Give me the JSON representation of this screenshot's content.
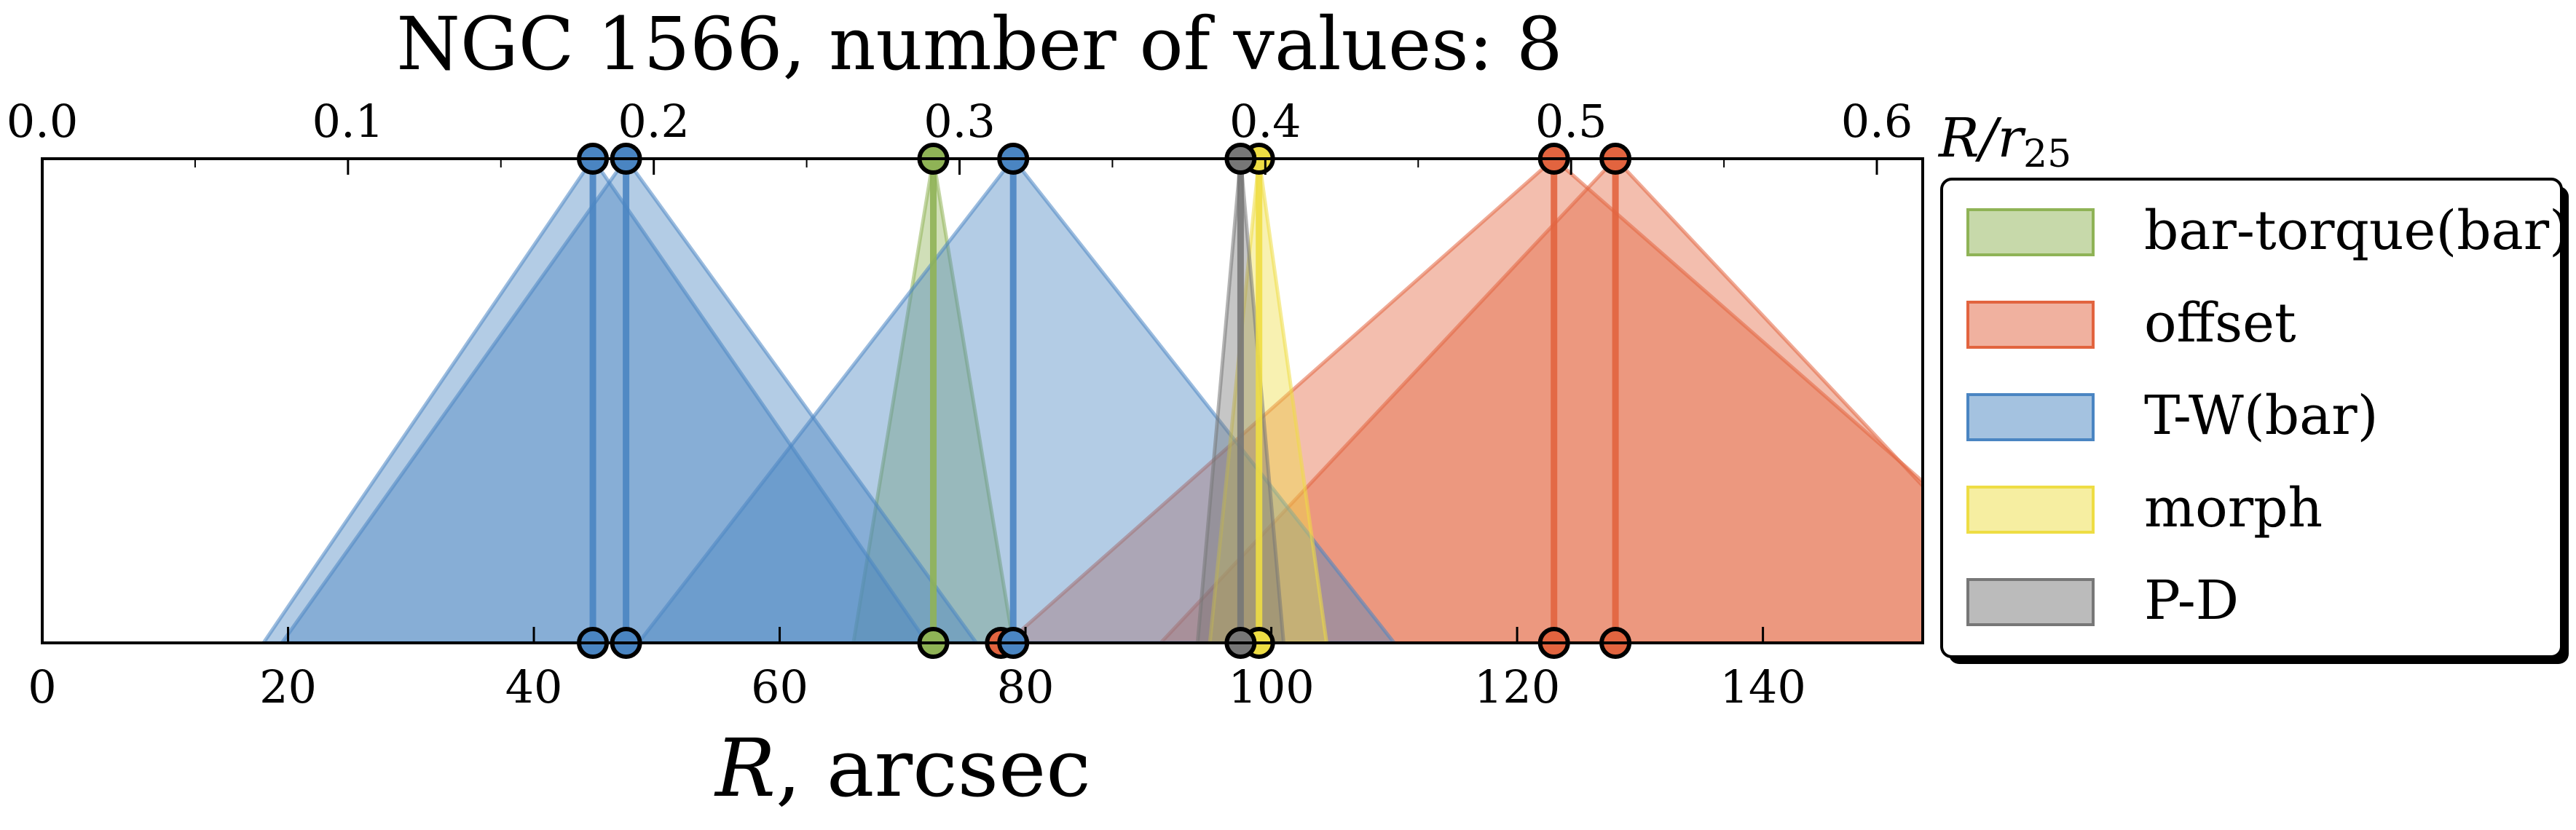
{
  "chart_data": {
    "type": "area",
    "title": "NGC 1566, number of values: 8",
    "xlabel": "R, arcsec",
    "xlabel_main": "R",
    "xlabel_rest": ", arcsec",
    "top_axis_label": "R/r25",
    "top_axis_label_base": "R/r",
    "top_axis_label_sub": "25",
    "xlim": [
      0,
      153
    ],
    "top_xlim": [
      0.0,
      0.615
    ],
    "x_ticks": [
      0,
      20,
      40,
      60,
      80,
      100,
      120,
      140
    ],
    "x_tick_labels": [
      "0",
      "20",
      "40",
      "60",
      "80",
      "100",
      "120",
      "140"
    ],
    "top_ticks": [
      0.0,
      0.1,
      0.2,
      0.3,
      0.4,
      0.5,
      0.6
    ],
    "top_tick_labels": [
      "0.0",
      "0.1",
      "0.2",
      "0.3",
      "0.4",
      "0.5",
      "0.6"
    ],
    "grid": false,
    "legend_position": "right",
    "series": [
      {
        "name": "bar-torque(bar)",
        "color": "#8fb356",
        "values": [
          {
            "center": 72.5,
            "left": 66.0,
            "right": 79.0
          }
        ]
      },
      {
        "name": "offset",
        "color": "#e2643f",
        "values": [
          {
            "center": 78.0,
            "left": 0,
            "right": 0,
            "marker_only": true
          },
          {
            "center": 123.0,
            "left": 78.5,
            "right": 168.0
          },
          {
            "center": 128.0,
            "left": 91.0,
            "right": 165.0
          }
        ]
      },
      {
        "name": "T-W(bar)",
        "color": "#4a85c2",
        "values": [
          {
            "center": 44.8,
            "left": 18.0,
            "right": 72.0
          },
          {
            "center": 47.5,
            "left": 19.5,
            "right": 76.0
          },
          {
            "center": 79.0,
            "left": 48.5,
            "right": 110.0
          }
        ]
      },
      {
        "name": "morph",
        "color": "#eedd44",
        "values": [
          {
            "center": 99.0,
            "left": 95.0,
            "right": 104.5
          }
        ]
      },
      {
        "name": "P-D",
        "color": "#777777",
        "values": [
          {
            "center": 97.5,
            "left": 94.0,
            "right": 101.0
          }
        ]
      }
    ]
  }
}
